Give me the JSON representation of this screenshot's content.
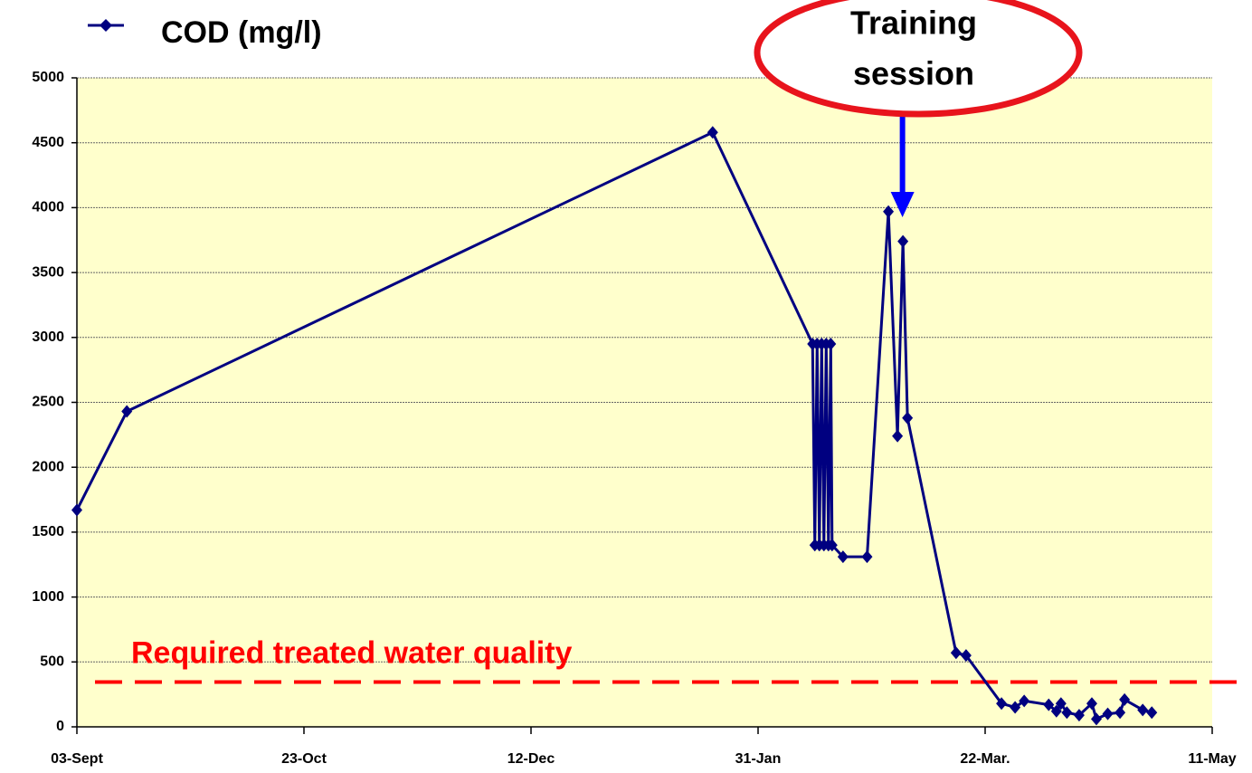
{
  "chart_data": {
    "type": "line",
    "x": [
      0,
      11,
      140,
      162,
      162.5,
      163,
      163.5,
      164,
      164.5,
      165,
      165.5,
      166,
      166.3,
      168.7,
      174,
      178.7,
      180.7,
      181.9,
      182.9,
      193.6,
      195.8,
      203.6,
      206.6,
      208.6,
      214,
      215.7,
      216.7,
      218,
      220.7,
      223.5,
      224.5,
      227,
      229.7,
      230.7,
      234.7,
      236.7
    ],
    "series": [
      {
        "name": "COD (mg/l)",
        "color": "#000080",
        "values": [
          1670,
          2430,
          4580,
          2950,
          1400,
          2950,
          1400,
          2950,
          1400,
          2950,
          1400,
          2950,
          1400,
          1310,
          1310,
          3970,
          2240,
          3740,
          2380,
          570,
          550,
          180,
          150,
          200,
          170,
          120,
          180,
          110,
          90,
          180,
          60,
          100,
          110,
          210,
          130,
          110
        ]
      }
    ],
    "xlim": [
      0,
      250
    ],
    "xticks": [
      {
        "value": 0,
        "label": "03-Sept"
      },
      {
        "value": 50,
        "label": "23-Oct"
      },
      {
        "value": 100,
        "label": "12-Dec"
      },
      {
        "value": 150,
        "label": "31-Jan"
      },
      {
        "value": 200,
        "label": "22-Mar."
      },
      {
        "value": 250,
        "label": "11-May"
      }
    ],
    "ylim": [
      0,
      5000
    ],
    "yticks": [
      0,
      500,
      1000,
      1500,
      2000,
      2500,
      3000,
      3500,
      4000,
      4500,
      5000
    ],
    "grid": true,
    "threshold": {
      "value": 345,
      "label": "Required treated water quality",
      "color": "#ff0000"
    },
    "annotation": {
      "lines": [
        "Training",
        "session"
      ],
      "x": 181.8
    }
  }
}
